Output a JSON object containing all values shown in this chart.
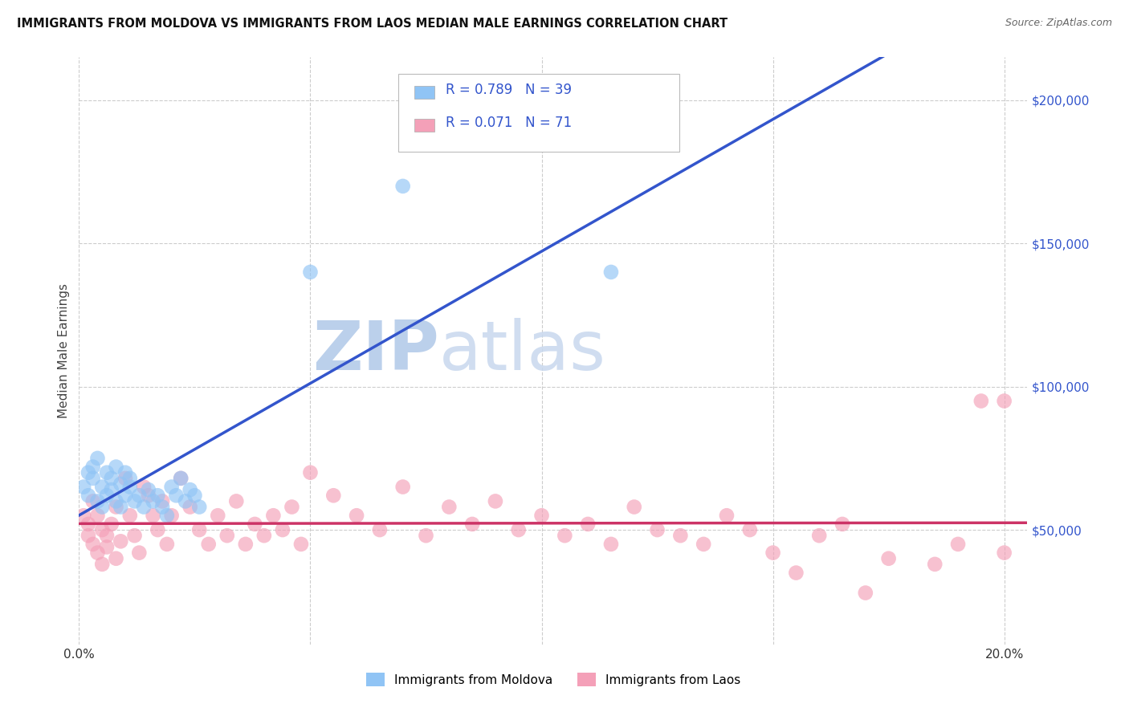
{
  "title": "IMMIGRANTS FROM MOLDOVA VS IMMIGRANTS FROM LAOS MEDIAN MALE EARNINGS CORRELATION CHART",
  "source": "Source: ZipAtlas.com",
  "ylabel": "Median Male Earnings",
  "xlim": [
    0.0,
    0.205
  ],
  "ylim": [
    10000,
    215000
  ],
  "yticks": [
    50000,
    100000,
    150000,
    200000
  ],
  "xticks": [
    0.0,
    0.05,
    0.1,
    0.15,
    0.2
  ],
  "xtick_labels": [
    "0.0%",
    "",
    "",
    "",
    "20.0%"
  ],
  "color_moldova": "#90C4F5",
  "color_laos": "#F4A0B8",
  "line_color_moldova": "#3355CC",
  "line_color_laos": "#CC3366",
  "line_dashed_color": "#C0C8D8",
  "watermark_color": "#D0E0F5",
  "moldova_x": [
    0.001,
    0.002,
    0.002,
    0.003,
    0.003,
    0.004,
    0.004,
    0.005,
    0.005,
    0.006,
    0.006,
    0.007,
    0.007,
    0.008,
    0.008,
    0.009,
    0.009,
    0.01,
    0.01,
    0.011,
    0.011,
    0.012,
    0.013,
    0.014,
    0.015,
    0.016,
    0.017,
    0.018,
    0.019,
    0.02,
    0.021,
    0.022,
    0.023,
    0.024,
    0.025,
    0.026,
    0.05,
    0.07,
    0.115
  ],
  "moldova_y": [
    65000,
    70000,
    62000,
    68000,
    72000,
    60000,
    75000,
    58000,
    65000,
    70000,
    62000,
    68000,
    64000,
    72000,
    60000,
    66000,
    58000,
    70000,
    62000,
    65000,
    68000,
    60000,
    62000,
    58000,
    64000,
    60000,
    62000,
    58000,
    55000,
    65000,
    62000,
    68000,
    60000,
    64000,
    62000,
    58000,
    140000,
    170000,
    140000
  ],
  "laos_x": [
    0.001,
    0.002,
    0.002,
    0.003,
    0.003,
    0.004,
    0.004,
    0.005,
    0.005,
    0.006,
    0.006,
    0.007,
    0.008,
    0.008,
    0.009,
    0.01,
    0.011,
    0.012,
    0.013,
    0.014,
    0.015,
    0.016,
    0.017,
    0.018,
    0.019,
    0.02,
    0.022,
    0.024,
    0.026,
    0.028,
    0.03,
    0.032,
    0.034,
    0.036,
    0.038,
    0.04,
    0.042,
    0.044,
    0.046,
    0.048,
    0.05,
    0.055,
    0.06,
    0.065,
    0.07,
    0.075,
    0.08,
    0.085,
    0.09,
    0.095,
    0.1,
    0.105,
    0.11,
    0.115,
    0.12,
    0.125,
    0.13,
    0.135,
    0.14,
    0.145,
    0.15,
    0.155,
    0.16,
    0.165,
    0.17,
    0.175,
    0.185,
    0.19,
    0.195,
    0.2,
    0.2
  ],
  "laos_y": [
    55000,
    52000,
    48000,
    60000,
    45000,
    55000,
    42000,
    50000,
    38000,
    48000,
    44000,
    52000,
    40000,
    58000,
    46000,
    68000,
    55000,
    48000,
    42000,
    65000,
    62000,
    55000,
    50000,
    60000,
    45000,
    55000,
    68000,
    58000,
    50000,
    45000,
    55000,
    48000,
    60000,
    45000,
    52000,
    48000,
    55000,
    50000,
    58000,
    45000,
    70000,
    62000,
    55000,
    50000,
    65000,
    48000,
    58000,
    52000,
    60000,
    50000,
    55000,
    48000,
    52000,
    45000,
    58000,
    50000,
    48000,
    45000,
    55000,
    50000,
    42000,
    35000,
    48000,
    52000,
    28000,
    40000,
    38000,
    45000,
    95000,
    95000,
    42000
  ]
}
